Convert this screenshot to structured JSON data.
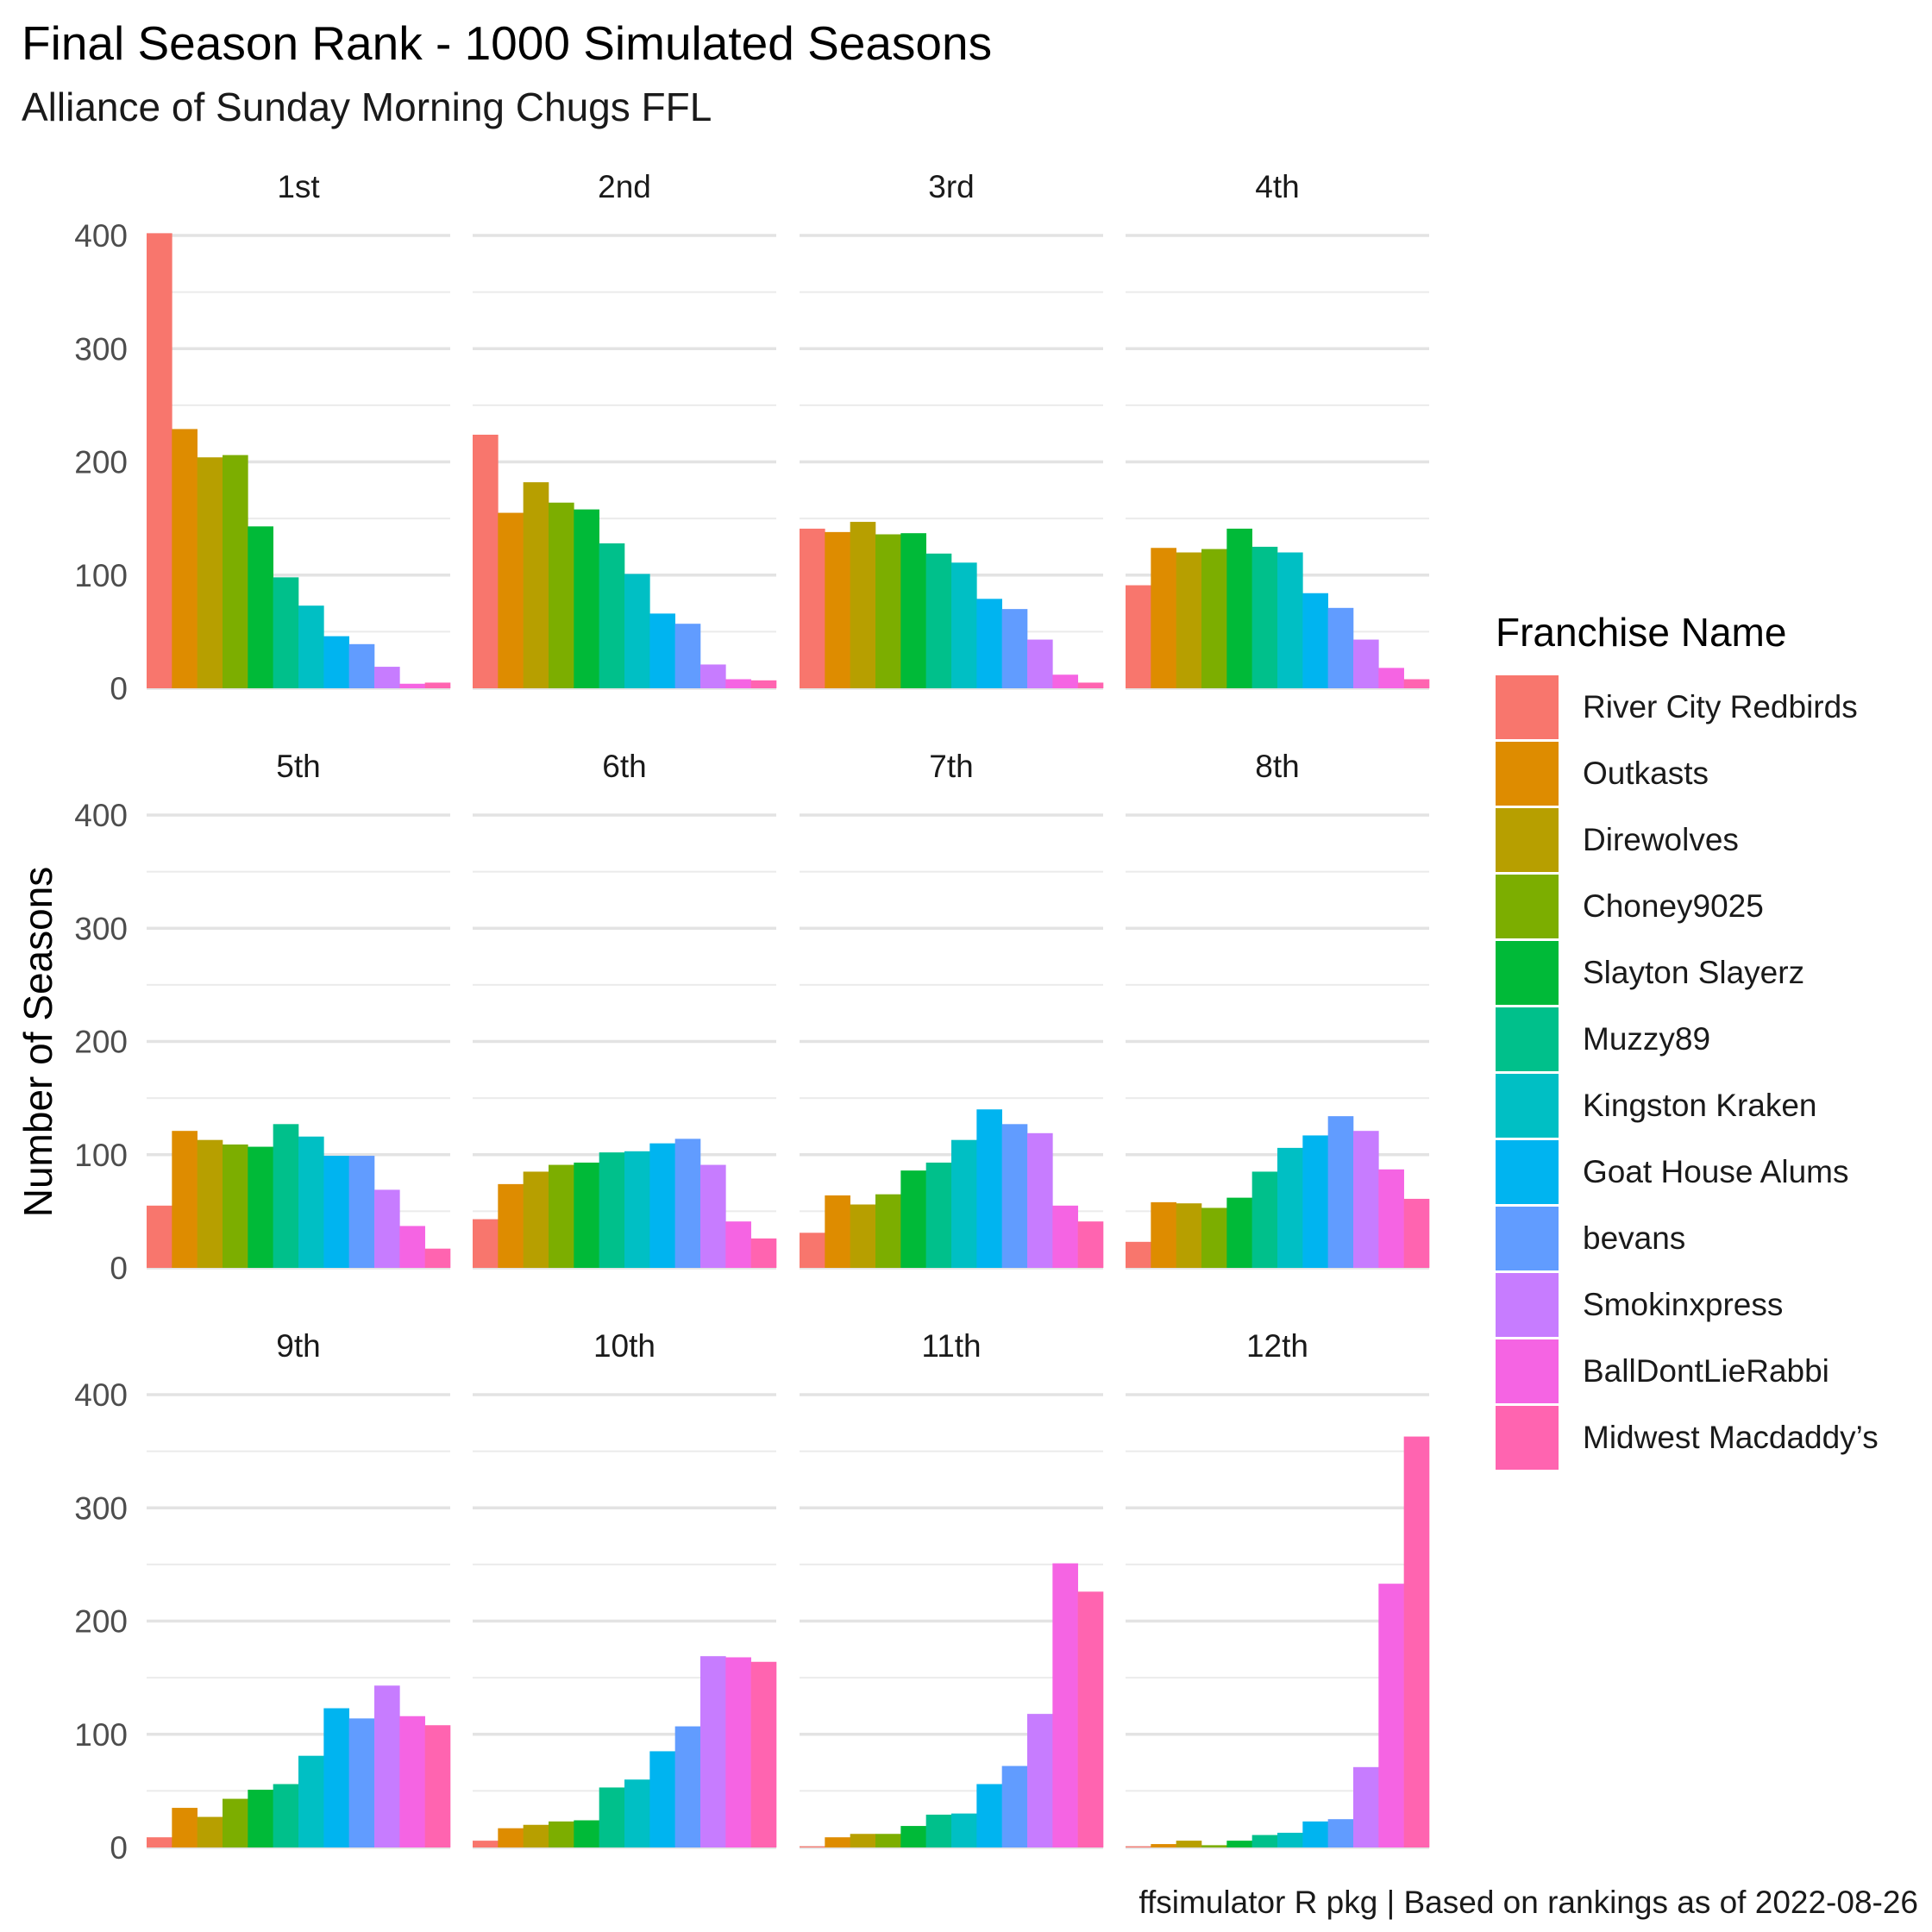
{
  "chart_data": {
    "type": "bar",
    "title": "Final Season Rank - 1000 Simulated Seasons",
    "subtitle": "Alliance of Sunday Morning Chugs FFL",
    "ylabel": "Number of Seasons",
    "xlabel": "",
    "ylim": [
      0,
      400
    ],
    "yticks": [
      0,
      100,
      200,
      300,
      400
    ],
    "grid": true,
    "legend_title": "Franchise Name",
    "legend_position": "right",
    "caption": "ffsimulator R pkg | Based on rankings as of 2022-08-26",
    "franchises": [
      {
        "name": "River City Redbirds",
        "color": "#F8766D"
      },
      {
        "name": "Outkasts",
        "color": "#DE8C00"
      },
      {
        "name": "Direwolves",
        "color": "#B79F00"
      },
      {
        "name": "Choney9025",
        "color": "#7CAE00"
      },
      {
        "name": "Slayton Slayerz",
        "color": "#00BA38"
      },
      {
        "name": "Muzzy89",
        "color": "#00C08B"
      },
      {
        "name": "Kingston Kraken",
        "color": "#00BFC4"
      },
      {
        "name": "Goat House Alums",
        "color": "#00B4F0"
      },
      {
        "name": "bevans",
        "color": "#619CFF"
      },
      {
        "name": "Smokinxpress",
        "color": "#C77CFF"
      },
      {
        "name": "BallDontLieRabbi",
        "color": "#F564E3"
      },
      {
        "name": "Midwest Macdaddy’s",
        "color": "#FF64B0"
      }
    ],
    "facets": [
      {
        "label": "1st",
        "values": [
          402,
          229,
          204,
          206,
          143,
          98,
          73,
          46,
          39,
          19,
          4,
          5
        ]
      },
      {
        "label": "2nd",
        "values": [
          224,
          155,
          182,
          164,
          158,
          128,
          101,
          66,
          57,
          21,
          8,
          7
        ]
      },
      {
        "label": "3rd",
        "values": [
          141,
          138,
          147,
          136,
          137,
          119,
          111,
          79,
          70,
          43,
          12,
          5
        ]
      },
      {
        "label": "4th",
        "values": [
          91,
          124,
          120,
          123,
          141,
          125,
          120,
          84,
          71,
          43,
          18,
          8
        ]
      },
      {
        "label": "5th",
        "values": [
          55,
          121,
          113,
          109,
          107,
          127,
          116,
          99,
          99,
          69,
          37,
          17
        ]
      },
      {
        "label": "6th",
        "values": [
          43,
          74,
          85,
          91,
          93,
          102,
          103,
          110,
          114,
          91,
          41,
          26
        ]
      },
      {
        "label": "7th",
        "values": [
          31,
          64,
          56,
          65,
          86,
          93,
          113,
          140,
          127,
          119,
          55,
          41
        ]
      },
      {
        "label": "8th",
        "values": [
          23,
          58,
          57,
          53,
          62,
          85,
          106,
          117,
          134,
          121,
          87,
          61
        ]
      },
      {
        "label": "9th",
        "values": [
          9,
          35,
          27,
          43,
          51,
          56,
          81,
          123,
          114,
          143,
          116,
          108
        ]
      },
      {
        "label": "10th",
        "values": [
          6,
          17,
          20,
          23,
          24,
          53,
          60,
          85,
          107,
          169,
          168,
          164
        ]
      },
      {
        "label": "11th",
        "values": [
          1,
          9,
          12,
          12,
          19,
          29,
          30,
          56,
          72,
          118,
          251,
          226
        ]
      },
      {
        "label": "12th",
        "values": [
          1,
          3,
          6,
          2,
          6,
          11,
          13,
          23,
          25,
          71,
          233,
          363
        ]
      }
    ]
  }
}
